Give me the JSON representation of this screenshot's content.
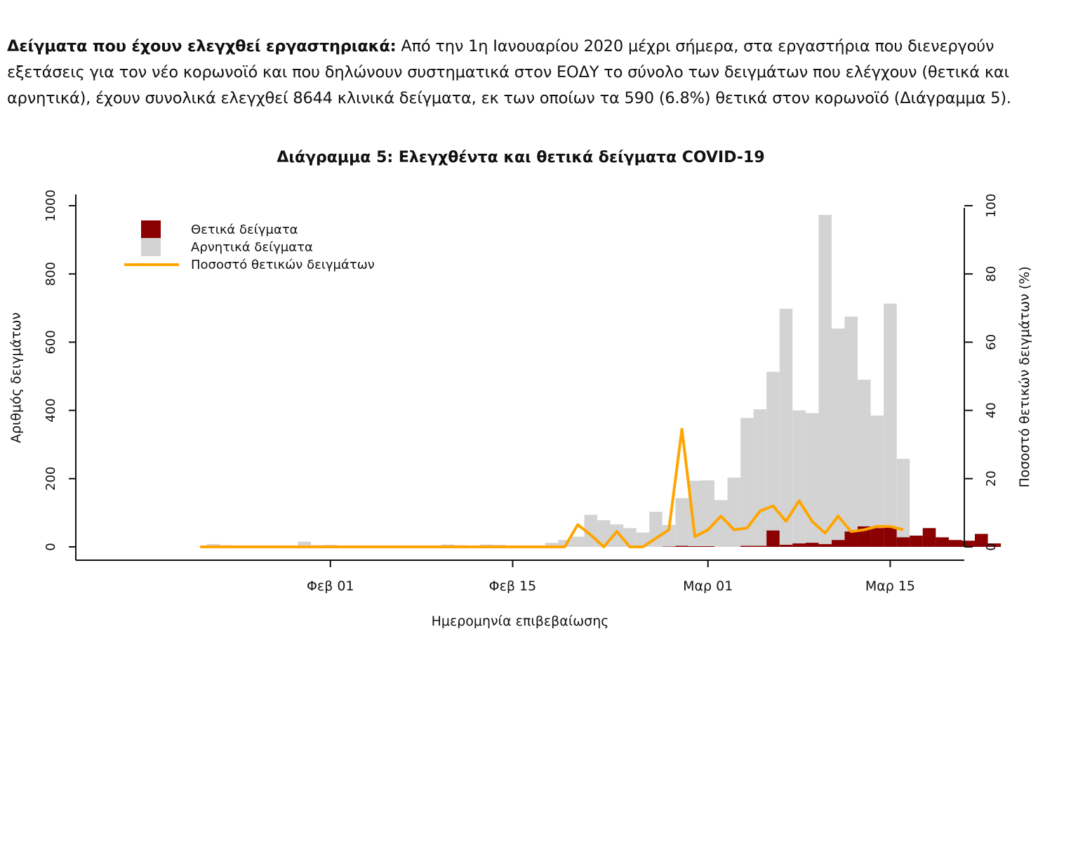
{
  "intro": {
    "lead": "Δείγματα που έχουν ελεγχθεί εργαστηριακά:",
    "body": " Από την 1η Ιανουαρίου 2020 μέχρι σήμερα, στα εργαστήρια που διενεργούν εξετάσεις για τον νέο κορωνοϊό και που δηλώνουν συστηματικά στον ΕΟΔΥ το σύνολο των δειγμάτων που ελέγχουν (θετικά και αρνητικά), έχουν συνολικά ελεγχθεί 8644 κλινικά δείγματα, εκ των οποίων τα 590 (6.8%) θετικά στον κορωνοϊό (Διάγραμμα 5)."
  },
  "chart_data": {
    "type": "bar",
    "title": "Διάγραμμα 5: Ελεγχθέντα και θετικά δείγματα COVID-19",
    "xlabel": "Ημερομηνία επιβεβαίωσης",
    "ylabel": "Αριθμός δειγμάτων",
    "ylabel_right": "Ποσοστό θετικών δειγμάτων (%)",
    "ylim": [
      0,
      1000
    ],
    "ylim_right": [
      0,
      100
    ],
    "yticks": [
      "0",
      "200",
      "400",
      "600",
      "800",
      "1000"
    ],
    "yticks_right": [
      "0",
      "20",
      "40",
      "60",
      "80",
      "100"
    ],
    "x_ticks": [
      "Φεβ 01",
      "Φεβ 15",
      "Μαρ 01",
      "Μαρ 15"
    ],
    "x_tick_day_index": [
      10,
      24,
      39,
      53
    ],
    "x_start_day": "Ιαν 22",
    "legend": {
      "position": "top-left",
      "items": [
        {
          "label": "Θετικά δείγματα",
          "color": "#8b0000",
          "kind": "box"
        },
        {
          "label": "Αρνητικά δείγματα",
          "color": "#d3d3d3",
          "kind": "box"
        },
        {
          "label": "Ποσοστό θετικών δειγμάτων",
          "color": "#ffa500",
          "kind": "line"
        }
      ]
    },
    "series": [
      {
        "name": "Θετικά δείγματα",
        "color": "#8b0000",
        "values": [
          0,
          0,
          0,
          0,
          0,
          0,
          0,
          0,
          0,
          0,
          0,
          0,
          0,
          0,
          0,
          0,
          0,
          0,
          0,
          0,
          0,
          0,
          0,
          0,
          0,
          0,
          0,
          0,
          0,
          0,
          0,
          0,
          0,
          0,
          0,
          0,
          1,
          3,
          2,
          2,
          0,
          0,
          3,
          3,
          48,
          6,
          10,
          12,
          8,
          20,
          45,
          60,
          55,
          58,
          28,
          33,
          55,
          28,
          20,
          18,
          38,
          10
        ]
      },
      {
        "name": "Αρνητικά δείγματα",
        "color": "#d3d3d3",
        "values": [
          1,
          8,
          5,
          3,
          4,
          3,
          2,
          3,
          15,
          5,
          6,
          4,
          3,
          2,
          2,
          2,
          3,
          3,
          3,
          7,
          5,
          3,
          7,
          6,
          4,
          3,
          3,
          12,
          20,
          30,
          94,
          78,
          66,
          55,
          42,
          103,
          63,
          140,
          192,
          193,
          137,
          203,
          375,
          400,
          465,
          692,
          390,
          380,
          965,
          620,
          630,
          430,
          330,
          655,
          230,
          0,
          0,
          0,
          0,
          0,
          0,
          0
        ]
      },
      {
        "name": "Ποσοστό θετικών δειγμάτων",
        "color": "#ffa500",
        "values": [
          0,
          0,
          0,
          0,
          0,
          0,
          0,
          0,
          0,
          0,
          0,
          0,
          0,
          0,
          0,
          0,
          0,
          0,
          0,
          0,
          0,
          0,
          0,
          0,
          0,
          0,
          0,
          0,
          0,
          6.5,
          3.5,
          0,
          4.5,
          0,
          0,
          2.5,
          5,
          34.5,
          3,
          5,
          9,
          5,
          5.5,
          10.5,
          12,
          7.5,
          13.5,
          7.5,
          4,
          9,
          4.5,
          5,
          6,
          6,
          5
        ]
      }
    ],
    "grid": false
  }
}
